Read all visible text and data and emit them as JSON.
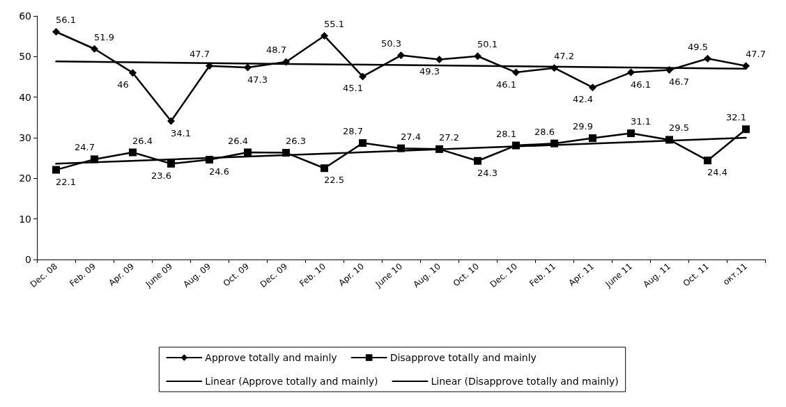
{
  "chart_data": {
    "type": "line",
    "categories": [
      "Dec. 08",
      "Feb. 09",
      "Apr. 09",
      "June 09",
      "Aug. 09",
      "Oct. 09",
      "Dec. 09",
      "Feb. 10",
      "Apr. 10",
      "June 10",
      "Aug. 10",
      "Oct. 10",
      "Dec. 10",
      "Feb. 11",
      "Apr. 11",
      "June 11",
      "Aug. 11",
      "Oct. 11",
      "окт.11"
    ],
    "series": [
      {
        "name": "Approve totally and mainly",
        "color": "#000000",
        "marker": "diamond",
        "value_labels": [
          "56.1",
          "51.9",
          "46",
          "34.1",
          "47.7",
          "47.3",
          "48.7",
          "55.1",
          "45.1",
          "50.3",
          "49.3",
          "50.1",
          "46.1",
          "47.2",
          "42.4",
          "46.1",
          "46.7",
          "49.5",
          "47.7"
        ],
        "values": [
          56.1,
          51.9,
          46,
          34.1,
          47.7,
          47.3,
          48.7,
          55.1,
          45.1,
          50.3,
          49.3,
          50.1,
          46.1,
          47.2,
          42.4,
          46.1,
          46.7,
          49.5,
          47.7
        ]
      },
      {
        "name": "Disapprove totally and mainly",
        "color": "#000000",
        "marker": "square",
        "value_labels": [
          "22.1",
          "24.7",
          "26.4",
          "23.6",
          "24.6",
          "26.4",
          "26.3",
          "22.5",
          "28.7",
          "27.4",
          "27.2",
          "24.3",
          "28.1",
          "28.6",
          "29.9",
          "31.1",
          "29.5",
          "24.4",
          "32.1"
        ],
        "values": [
          22.1,
          24.7,
          26.4,
          23.6,
          24.6,
          26.4,
          26.3,
          22.5,
          28.7,
          27.4,
          27.2,
          24.3,
          28.1,
          28.6,
          29.9,
          31.1,
          29.5,
          24.4,
          32.1
        ]
      },
      {
        "name": "Linear (Approve totally and mainly)",
        "color": "#000000",
        "marker": "none",
        "x": [
          "Dec. 08",
          "окт.11"
        ],
        "values": [
          48.8,
          47
        ]
      },
      {
        "name": "Linear (Disapprove totally and mainly)",
        "color": "#000000",
        "marker": "none",
        "x": [
          "Dec. 08",
          "окт.11"
        ],
        "values": [
          23.6,
          30
        ]
      }
    ],
    "ylim": [
      0,
      60
    ],
    "yticks": [
      0,
      10,
      20,
      30,
      40,
      50,
      60
    ],
    "grid": false,
    "legend": "bottom",
    "line_style": "solid"
  }
}
